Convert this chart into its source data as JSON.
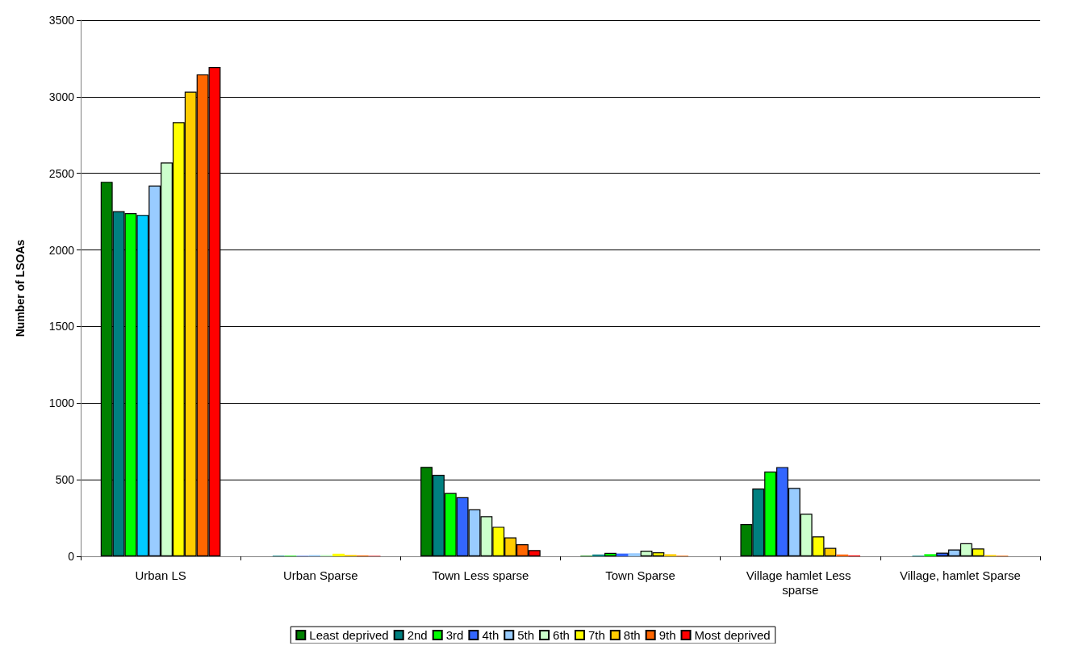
{
  "chart_data": {
    "type": "bar",
    "ylabel": "Number of LSOAs",
    "categories": [
      "Urban LS",
      "Urban Sparse",
      "Town Less sparse",
      "Town Sparse",
      "Village hamlet Less sparse",
      "Village, hamlet Sparse"
    ],
    "ylim": [
      0,
      3500
    ],
    "yticks": [
      0,
      500,
      1000,
      1500,
      2000,
      2500,
      3000,
      3500
    ],
    "grid": "y",
    "legend": "bottom",
    "series": [
      {
        "name": "Least deprived",
        "color": "#008000",
        "values": [
          2445,
          null,
          584,
          4,
          211,
          null
        ]
      },
      {
        "name": "2nd",
        "color": "#008080",
        "values": [
          2253,
          4,
          532,
          12,
          443,
          4
        ]
      },
      {
        "name": "3rd",
        "color": "#00ff00",
        "values": [
          2240,
          4,
          414,
          22,
          553,
          14
        ]
      },
      {
        "name": "4th",
        "color": "#3366ff",
        "colors": [
          "#00ccff",
          "#3366ff",
          "#3366ff",
          "#3366ff",
          "#3366ff",
          "#3366ff"
        ],
        "values": [
          2229,
          3,
          386,
          18,
          583,
          24
        ]
      },
      {
        "name": "5th",
        "color": "#99ccff",
        "values": [
          2421,
          8,
          307,
          20,
          447,
          45
        ]
      },
      {
        "name": "6th",
        "color": "#ccffcc",
        "values": [
          2571,
          10,
          262,
          37,
          278,
          85
        ]
      },
      {
        "name": "7th",
        "color": "#ffff00",
        "values": [
          2834,
          17,
          193,
          26,
          130,
          51
        ]
      },
      {
        "name": "8th",
        "color": "#ffcc00",
        "values": [
          3033,
          9,
          124,
          14,
          55,
          8
        ]
      },
      {
        "name": "9th",
        "color": "#ff6600",
        "values": [
          3146,
          6,
          79,
          4,
          12,
          4
        ]
      },
      {
        "name": "Most deprived",
        "color": "#ff0000",
        "values": [
          3194,
          3,
          41,
          null,
          6,
          null
        ]
      }
    ]
  }
}
